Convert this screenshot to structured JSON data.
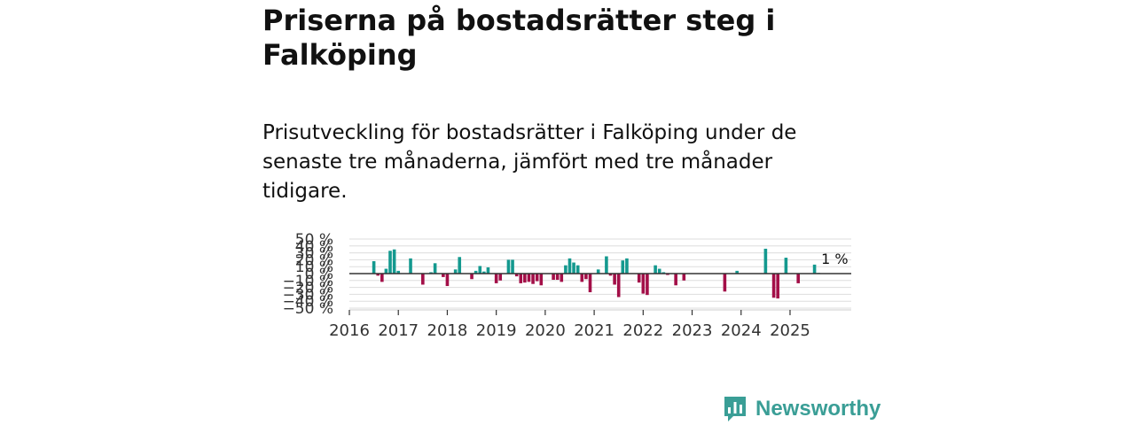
{
  "title": "Priserna på bostadsrätter steg i Falköping",
  "subtitle": "Prisutveckling för bostadsrätter i Falköping under de senaste tre månaderna, jämfört med tre månader tidigare.",
  "logo": {
    "text": "Newsworthy",
    "icon": "newsworthy-bar-chart-icon"
  },
  "colors": {
    "positive": "#14998f",
    "negative": "#a30f48",
    "gridline": "#dddddd",
    "zero_line": "#333333",
    "logo": "#3a9e96"
  },
  "chart_data": {
    "type": "bar",
    "title": "",
    "xlabel": "",
    "ylabel": "",
    "ylim": [
      -50,
      50
    ],
    "yticks": [
      -50,
      -40,
      -30,
      -20,
      -10,
      0,
      10,
      20,
      30,
      40,
      50
    ],
    "ytick_labels": [
      "−50 %",
      "−40 %",
      "−30 %",
      "−20 %",
      "−10 %",
      "0 %",
      "10 %",
      "20 %",
      "30 %",
      "40 %",
      "50 %"
    ],
    "x_range": [
      2016.0,
      2026.25
    ],
    "xticks": [
      2016,
      2017,
      2018,
      2019,
      2020,
      2021,
      2022,
      2023,
      2024,
      2025
    ],
    "xtick_labels": [
      "2016",
      "2017",
      "2018",
      "2019",
      "2020",
      "2021",
      "2022",
      "2023",
      "2024",
      "2025"
    ],
    "last_value_label": "1 %",
    "series": [
      {
        "name": "Prisutveckling",
        "points": [
          {
            "x": 2016.5,
            "value": 18
          },
          {
            "x": 2016.583,
            "value": -3
          },
          {
            "x": 2016.667,
            "value": -12
          },
          {
            "x": 2016.75,
            "value": 7
          },
          {
            "x": 2016.833,
            "value": 33
          },
          {
            "x": 2016.917,
            "value": 35
          },
          {
            "x": 2017.0,
            "value": 4
          },
          {
            "x": 2017.25,
            "value": 22
          },
          {
            "x": 2017.5,
            "value": -16
          },
          {
            "x": 2017.667,
            "value": 2
          },
          {
            "x": 2017.75,
            "value": 15
          },
          {
            "x": 2017.917,
            "value": -5
          },
          {
            "x": 2018.0,
            "value": -18
          },
          {
            "x": 2018.167,
            "value": 6
          },
          {
            "x": 2018.25,
            "value": 24
          },
          {
            "x": 2018.5,
            "value": -8
          },
          {
            "x": 2018.583,
            "value": 4
          },
          {
            "x": 2018.667,
            "value": 11
          },
          {
            "x": 2018.75,
            "value": 3
          },
          {
            "x": 2018.833,
            "value": 9
          },
          {
            "x": 2019.0,
            "value": -14
          },
          {
            "x": 2019.083,
            "value": -10
          },
          {
            "x": 2019.25,
            "value": 20
          },
          {
            "x": 2019.333,
            "value": 20
          },
          {
            "x": 2019.417,
            "value": -4
          },
          {
            "x": 2019.5,
            "value": -14
          },
          {
            "x": 2019.583,
            "value": -13
          },
          {
            "x": 2019.667,
            "value": -12
          },
          {
            "x": 2019.75,
            "value": -15
          },
          {
            "x": 2019.833,
            "value": -11
          },
          {
            "x": 2019.917,
            "value": -17
          },
          {
            "x": 2020.167,
            "value": -9
          },
          {
            "x": 2020.25,
            "value": -9
          },
          {
            "x": 2020.333,
            "value": -12
          },
          {
            "x": 2020.417,
            "value": 12
          },
          {
            "x": 2020.5,
            "value": 22
          },
          {
            "x": 2020.583,
            "value": 16
          },
          {
            "x": 2020.667,
            "value": 12
          },
          {
            "x": 2020.75,
            "value": -12
          },
          {
            "x": 2020.833,
            "value": -8
          },
          {
            "x": 2020.917,
            "value": -27
          },
          {
            "x": 2021.083,
            "value": 6
          },
          {
            "x": 2021.25,
            "value": 25
          },
          {
            "x": 2021.333,
            "value": -3
          },
          {
            "x": 2021.417,
            "value": -16
          },
          {
            "x": 2021.5,
            "value": -34
          },
          {
            "x": 2021.583,
            "value": 19
          },
          {
            "x": 2021.667,
            "value": 22
          },
          {
            "x": 2021.917,
            "value": -13
          },
          {
            "x": 2022.0,
            "value": -29
          },
          {
            "x": 2022.083,
            "value": -31
          },
          {
            "x": 2022.25,
            "value": 12
          },
          {
            "x": 2022.333,
            "value": 7
          },
          {
            "x": 2022.417,
            "value": 2
          },
          {
            "x": 2022.5,
            "value": -2
          },
          {
            "x": 2022.667,
            "value": -17
          },
          {
            "x": 2022.833,
            "value": -10
          },
          {
            "x": 2023.667,
            "value": -26
          },
          {
            "x": 2023.917,
            "value": 4
          },
          {
            "x": 2024.5,
            "value": 36
          },
          {
            "x": 2024.667,
            "value": -35
          },
          {
            "x": 2024.75,
            "value": -36
          },
          {
            "x": 2024.917,
            "value": 23
          },
          {
            "x": 2025.167,
            "value": -14
          },
          {
            "x": 2025.5,
            "value": 13
          },
          {
            "x": 2025.583,
            "value": 1
          }
        ]
      }
    ]
  }
}
